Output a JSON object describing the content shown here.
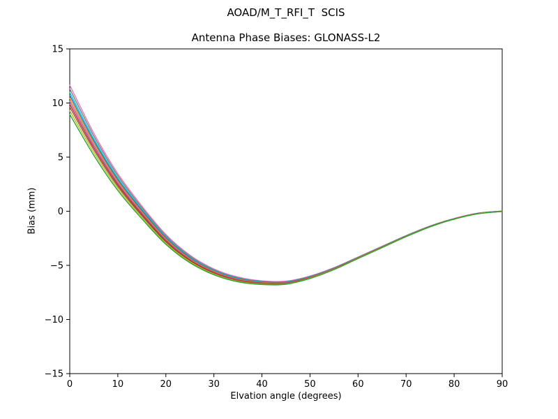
{
  "chart_data": {
    "type": "line",
    "title": "AOAD/M_T_RFI_T  SCIS",
    "subtitle": "Antenna Phase Biases: GLONASS-L2",
    "xlabel": "Elvation angle (degrees)",
    "ylabel": "Bias (mm)",
    "xlim": [
      0,
      90
    ],
    "ylim": [
      -15,
      15
    ],
    "xticks": [
      0,
      10,
      20,
      30,
      40,
      50,
      60,
      70,
      80,
      90
    ],
    "yticks": [
      -15,
      -10,
      -5,
      0,
      5,
      10,
      15
    ],
    "grid": false,
    "legend": "none",
    "frame_color": "#000000",
    "line_width": 1.4,
    "x": [
      0,
      5,
      10,
      15,
      20,
      25,
      30,
      35,
      40,
      45,
      50,
      55,
      60,
      65,
      70,
      75,
      80,
      85,
      90
    ],
    "series": [
      {
        "name": "series-1",
        "color": "#e377c2",
        "values": [
          11.65,
          7.22,
          3.48,
          0.49,
          -2.14,
          -4.05,
          -5.33,
          -6.08,
          -6.43,
          -6.46,
          -5.99,
          -5.21,
          -4.23,
          -3.24,
          -2.25,
          -1.36,
          -0.67,
          -0.17,
          0.02
        ]
      },
      {
        "name": "series-2",
        "color": "#7f7f7f",
        "values": [
          11.31,
          6.97,
          3.29,
          0.34,
          -2.26,
          -4.14,
          -5.4,
          -6.14,
          -6.47,
          -6.5,
          -6.02,
          -5.23,
          -4.25,
          -3.26,
          -2.26,
          -1.37,
          -0.68,
          -0.18,
          0.01
        ]
      },
      {
        "name": "series-3",
        "color": "#17becf",
        "values": [
          10.98,
          6.71,
          3.09,
          0.2,
          -2.37,
          -4.23,
          -5.47,
          -6.19,
          -6.52,
          -6.53,
          -6.05,
          -5.26,
          -4.27,
          -3.27,
          -2.28,
          -1.38,
          -0.69,
          -0.19,
          0.01
        ]
      },
      {
        "name": "series-4",
        "color": "#1f77b4",
        "values": [
          10.71,
          6.51,
          2.93,
          0.08,
          -2.46,
          -4.3,
          -5.52,
          -6.23,
          -6.55,
          -6.56,
          -6.07,
          -5.27,
          -4.28,
          -3.28,
          -2.29,
          -1.39,
          -0.69,
          -0.19,
          0.01
        ]
      },
      {
        "name": "series-5",
        "color": "#ff7f0e",
        "values": [
          10.44,
          6.3,
          2.78,
          -0.04,
          -2.55,
          -4.37,
          -5.57,
          -6.28,
          -6.58,
          -6.59,
          -6.09,
          -5.29,
          -4.29,
          -3.29,
          -2.3,
          -1.4,
          -0.7,
          -0.2,
          0.0
        ]
      },
      {
        "name": "series-6",
        "color": "#9467bd",
        "values": [
          10.17,
          6.1,
          2.62,
          -0.16,
          -2.65,
          -4.44,
          -5.63,
          -6.32,
          -6.62,
          -6.61,
          -6.11,
          -5.31,
          -4.31,
          -3.31,
          -2.31,
          -1.4,
          -0.7,
          -0.2,
          0.0
        ]
      },
      {
        "name": "series-7",
        "color": "#d62728",
        "values": [
          9.9,
          5.89,
          2.47,
          -0.28,
          -2.74,
          -4.51,
          -5.68,
          -6.37,
          -6.65,
          -6.64,
          -6.13,
          -5.33,
          -4.32,
          -3.32,
          -2.32,
          -1.41,
          -0.71,
          -0.21,
          -0.01
        ]
      },
      {
        "name": "series-8",
        "color": "#8c564b",
        "values": [
          9.63,
          5.69,
          2.31,
          -0.4,
          -2.83,
          -4.58,
          -5.74,
          -6.41,
          -6.69,
          -6.67,
          -6.16,
          -5.35,
          -4.34,
          -3.33,
          -2.33,
          -1.42,
          -0.72,
          -0.22,
          -0.01
        ]
      },
      {
        "name": "series-9",
        "color": "#bcbd22",
        "values": [
          9.29,
          5.44,
          2.12,
          -0.54,
          -2.95,
          -4.66,
          -5.8,
          -6.47,
          -6.73,
          -6.71,
          -6.18,
          -5.37,
          -4.35,
          -3.35,
          -2.34,
          -1.43,
          -0.72,
          -0.22,
          -0.02
        ]
      },
      {
        "name": "series-10",
        "color": "#2ca02c",
        "values": [
          8.95,
          5.18,
          1.92,
          -0.69,
          -3.06,
          -4.75,
          -5.87,
          -6.52,
          -6.77,
          -6.74,
          -6.21,
          -5.39,
          -4.37,
          -3.36,
          -2.35,
          -1.44,
          -0.73,
          -0.23,
          -0.02
        ]
      }
    ]
  }
}
